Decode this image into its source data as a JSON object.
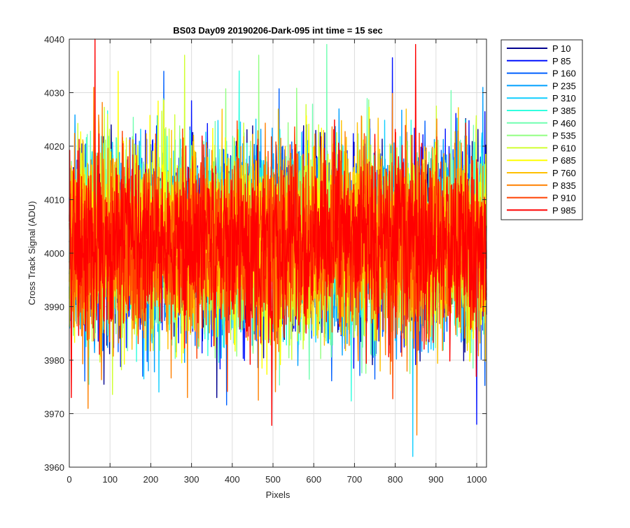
{
  "chart_data": {
    "type": "line",
    "title": "BS03 Day09 20190206-Dark-095 int time = 15 sec",
    "xlabel": "Pixels",
    "ylabel": "Cross Track Signal (ADU)",
    "xlim": [
      0,
      1024
    ],
    "ylim": [
      3960,
      4040
    ],
    "x_ticks": [
      0,
      100,
      200,
      300,
      400,
      500,
      600,
      700,
      800,
      900,
      1000
    ],
    "y_ticks": [
      3960,
      3970,
      3980,
      3990,
      4000,
      4010,
      4020,
      4030,
      4040
    ],
    "grid": true,
    "legend_position": "outside-top-right",
    "noise_model": {
      "mean": 4002,
      "std": 8.5,
      "min_clip": 3961,
      "max_clip": 4039
    },
    "notable_points": [
      {
        "series": "P 985",
        "x": 63,
        "y": 4040
      },
      {
        "series": "P 985",
        "x": 850,
        "y": 4039
      },
      {
        "series": "P 310",
        "x": 843,
        "y": 3962
      },
      {
        "series": "P 835",
        "x": 853,
        "y": 3966
      },
      {
        "series": "P 85",
        "x": 1000,
        "y": 3968
      },
      {
        "series": "P 985",
        "x": 5,
        "y": 3973
      },
      {
        "series": "P 460",
        "x": 632,
        "y": 4039
      },
      {
        "series": "P 610",
        "x": 283,
        "y": 4037
      },
      {
        "series": "P 535",
        "x": 465,
        "y": 4037
      },
      {
        "series": "P 160",
        "x": 232,
        "y": 4034
      },
      {
        "series": "P 685",
        "x": 120,
        "y": 4034
      },
      {
        "series": "P 235",
        "x": 1015,
        "y": 4031
      },
      {
        "series": "P 835",
        "x": 60,
        "y": 4031
      },
      {
        "series": "P 10",
        "x": 362,
        "y": 3973
      },
      {
        "series": "P 835",
        "x": 290,
        "y": 3973
      },
      {
        "series": "P 10",
        "x": 10,
        "y": 4016
      }
    ],
    "series": [
      {
        "name": "P 10",
        "color": "#00008f"
      },
      {
        "name": "P 85",
        "color": "#0010ff"
      },
      {
        "name": "P 160",
        "color": "#0060ff"
      },
      {
        "name": "P 235",
        "color": "#00a0ff"
      },
      {
        "name": "P 310",
        "color": "#10cfff"
      },
      {
        "name": "P 385",
        "color": "#30ffdf"
      },
      {
        "name": "P 460",
        "color": "#70ffb0"
      },
      {
        "name": "P 535",
        "color": "#90ff80"
      },
      {
        "name": "P 610",
        "color": "#d0ff30"
      },
      {
        "name": "P 685",
        "color": "#ffff00"
      },
      {
        "name": "P 760",
        "color": "#ffc000"
      },
      {
        "name": "P 835",
        "color": "#ff8000"
      },
      {
        "name": "P 910",
        "color": "#ff4000"
      },
      {
        "name": "P 985",
        "color": "#ff0000"
      }
    ]
  }
}
